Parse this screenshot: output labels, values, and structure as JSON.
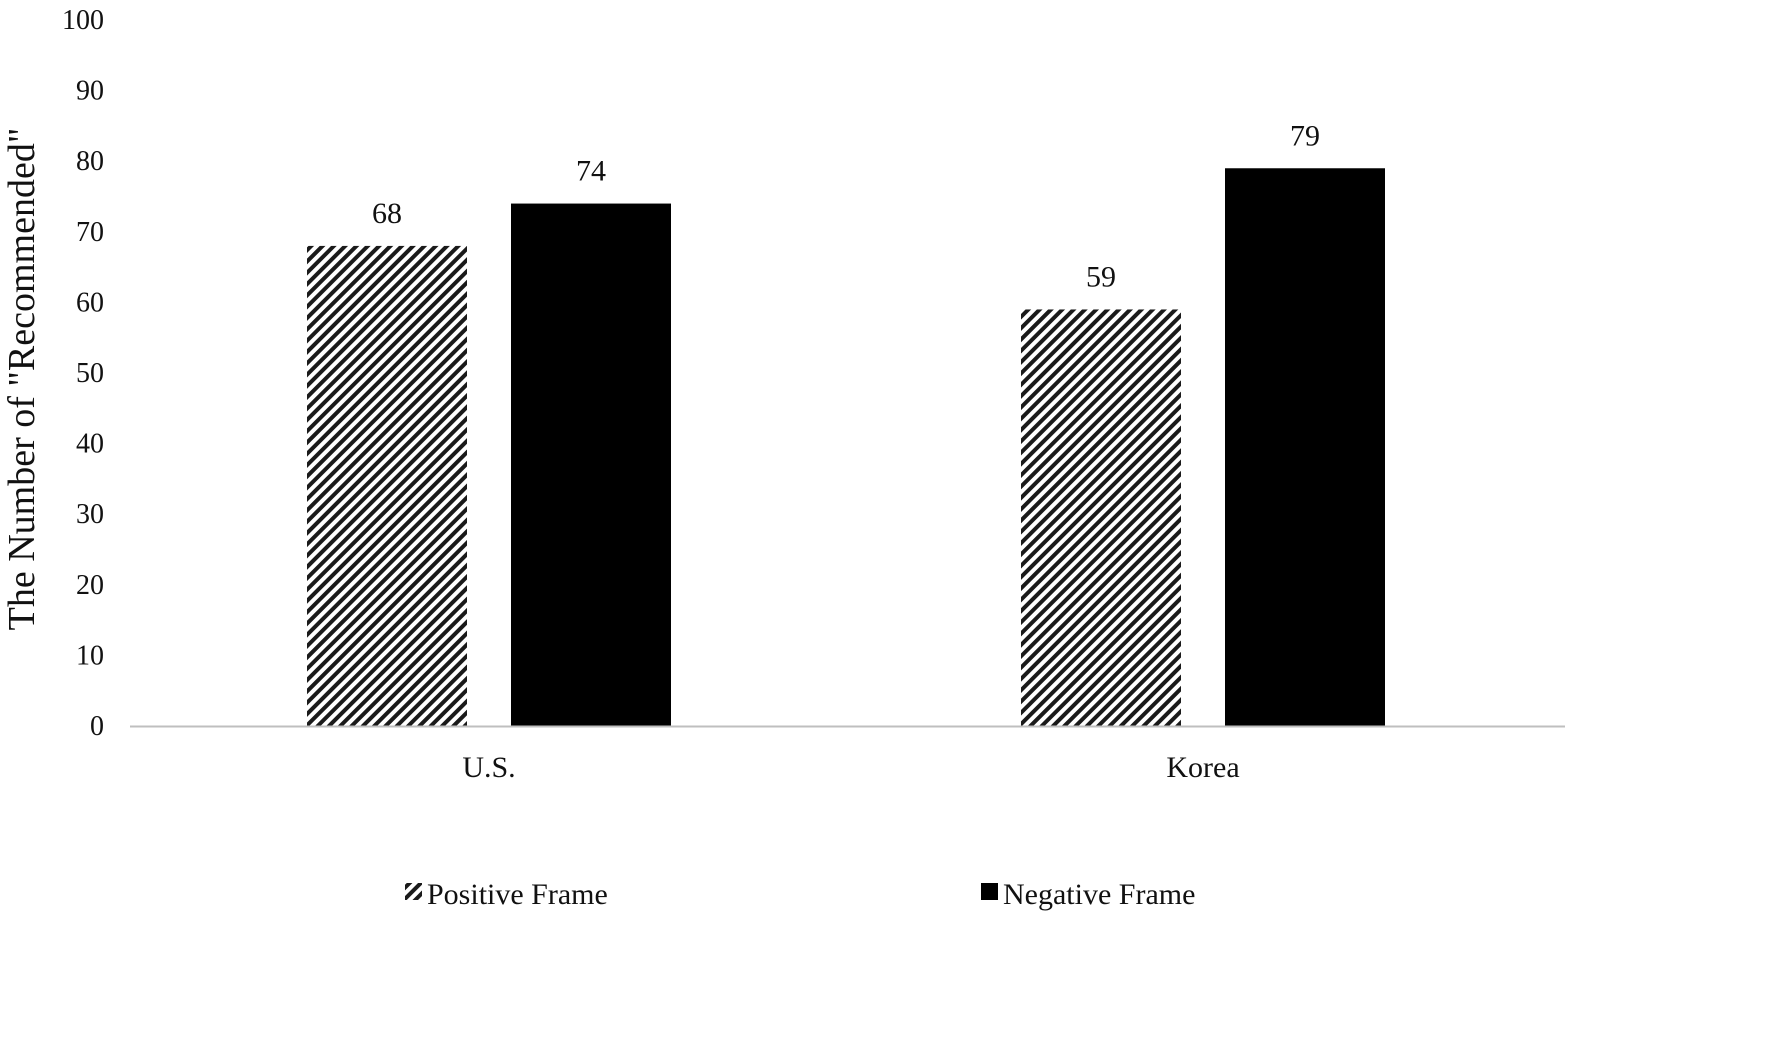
{
  "chart_data": {
    "type": "bar",
    "title": "",
    "xlabel": "",
    "ylabel": "The Number of \"Recommended\"",
    "categories": [
      "U.S.",
      "Korea"
    ],
    "series": [
      {
        "name": "Positive Frame",
        "values": [
          68,
          59
        ],
        "color": "#000000",
        "pattern": "diagonal-hatch"
      },
      {
        "name": "Negative Frame",
        "values": [
          74,
          79
        ],
        "color": "#000000",
        "pattern": "solid"
      }
    ],
    "ylim": [
      0,
      100
    ],
    "yticks": [
      0,
      10,
      20,
      30,
      40,
      50,
      60,
      70,
      80,
      90,
      100
    ],
    "data_labels": true,
    "grid": false,
    "legend_position": "bottom"
  }
}
